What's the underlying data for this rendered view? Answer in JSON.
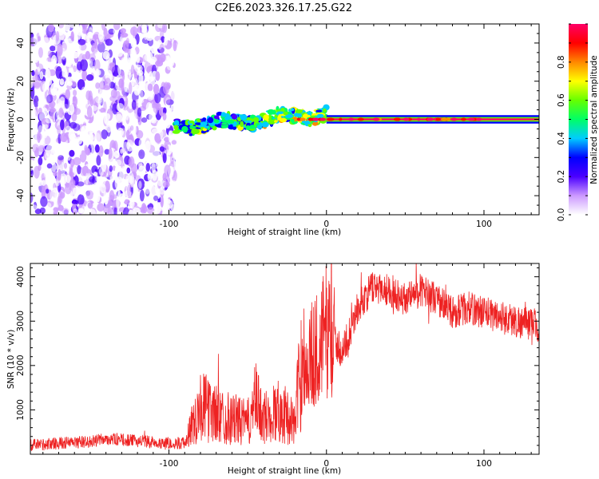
{
  "figure": {
    "title": "C2E6.2023.326.17.25.G22"
  },
  "chart_data": [
    {
      "type": "heatmap",
      "xlabel": "Height of straight line (km)",
      "ylabel": "Frequency (Hz)",
      "xlim": [
        -188,
        135
      ],
      "ylim": [
        -50,
        50
      ],
      "x_ticks": [
        -100,
        0,
        100
      ],
      "y_ticks": [
        -40,
        -20,
        0,
        20,
        40
      ],
      "regions": [
        {
          "x": [
            -188,
            -96
          ],
          "frequency": [
            -50,
            50
          ],
          "amplitude": "low (~0.1-0.2), scattered"
        },
        {
          "x": [
            -96,
            0
          ],
          "frequency_trend": [
            -4,
            3
          ],
          "amplitude": "medium (~0.3-0.6)"
        },
        {
          "x": [
            0,
            135
          ],
          "frequency": 0,
          "amplitude": "high (~0.9-1.0)"
        }
      ],
      "colorbar": {
        "label": "Normalized spectral amplitude",
        "ticks": [
          0.0,
          0.2,
          0.4,
          0.6,
          0.8
        ],
        "range": [
          0,
          1
        ],
        "colors": [
          "#ffffff",
          "#cc99ff",
          "#4b00ff",
          "#0000ff",
          "#00ccff",
          "#00ff66",
          "#66ff00",
          "#ffff00",
          "#ff8800",
          "#ff0000",
          "#ff0066"
        ]
      }
    },
    {
      "type": "line",
      "xlabel": "Height of straight line (km)",
      "ylabel": "SNR (10 * v/v)",
      "xlim": [
        -188,
        135
      ],
      "ylim": [
        0,
        4300
      ],
      "x_ticks": [
        -100,
        0,
        100
      ],
      "y_ticks": [
        1000,
        2000,
        3000,
        4000
      ],
      "color": "#ee2222",
      "series": [
        {
          "x": [
            -188,
            -170,
            -150,
            -140,
            -120,
            -100,
            -90,
            -85,
            -80,
            -70,
            -60,
            -50,
            -45,
            -40,
            -30,
            -20,
            -15,
            -12,
            -10,
            -5,
            0,
            10,
            20,
            30,
            40,
            50,
            60,
            70,
            80,
            90,
            100,
            110,
            120,
            135
          ],
          "y": [
            200,
            250,
            280,
            350,
            300,
            250,
            250,
            700,
            1100,
            900,
            800,
            700,
            1200,
            800,
            1000,
            700,
            2400,
            1800,
            2200,
            2400,
            2800,
            2300,
            3300,
            3800,
            3700,
            3500,
            3700,
            3500,
            3200,
            3300,
            3200,
            3100,
            3000,
            2900
          ]
        }
      ]
    }
  ]
}
